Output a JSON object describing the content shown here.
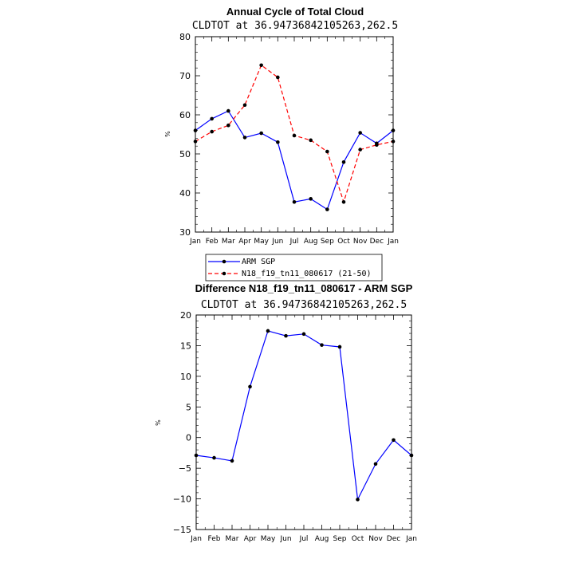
{
  "chart_data": [
    {
      "type": "line",
      "title": "Annual Cycle of Total Cloud",
      "subtitle": "CLDTOT at 36.94736842105263,262.5",
      "ylabel": "%",
      "xlabel": "",
      "categories": [
        "Jan",
        "Feb",
        "Mar",
        "Apr",
        "May",
        "Jun",
        "Jul",
        "Aug",
        "Sep",
        "Oct",
        "Nov",
        "Dec",
        "Jan"
      ],
      "ylim": [
        30,
        80
      ],
      "yticks": [
        30,
        40,
        50,
        60,
        70,
        80
      ],
      "series": [
        {
          "name": "ARM SGP",
          "color": "#0000ff",
          "dash": "solid",
          "values": [
            56.0,
            59.0,
            61.0,
            54.2,
            55.3,
            53.0,
            37.7,
            38.5,
            35.8,
            47.9,
            55.4,
            52.7,
            56.0
          ]
        },
        {
          "name": "N18_f19_tn11_080617 (21-50)",
          "color": "#ff0000",
          "dash": "dashed",
          "values": [
            53.2,
            55.7,
            57.3,
            62.5,
            72.7,
            69.6,
            54.7,
            53.5,
            50.6,
            37.7,
            51.1,
            52.3,
            53.2
          ]
        }
      ]
    },
    {
      "type": "line",
      "title": "Difference N18_f19_tn11_080617 - ARM SGP",
      "subtitle": "CLDTOT at 36.94736842105263,262.5",
      "ylabel": "%",
      "xlabel": "",
      "categories": [
        "Jan",
        "Feb",
        "Mar",
        "Apr",
        "May",
        "Jun",
        "Jul",
        "Aug",
        "Sep",
        "Oct",
        "Nov",
        "Dec",
        "Jan"
      ],
      "ylim": [
        -15,
        20
      ],
      "yticks": [
        -15,
        -10,
        -5,
        0,
        5,
        10,
        15,
        20
      ],
      "series": [
        {
          "name": "Difference",
          "color": "#0000ff",
          "dash": "solid",
          "values": [
            -2.9,
            -3.3,
            -3.8,
            8.3,
            17.4,
            16.6,
            16.9,
            15.1,
            14.8,
            -10.1,
            -4.3,
            -0.4,
            -2.9
          ]
        }
      ]
    }
  ]
}
